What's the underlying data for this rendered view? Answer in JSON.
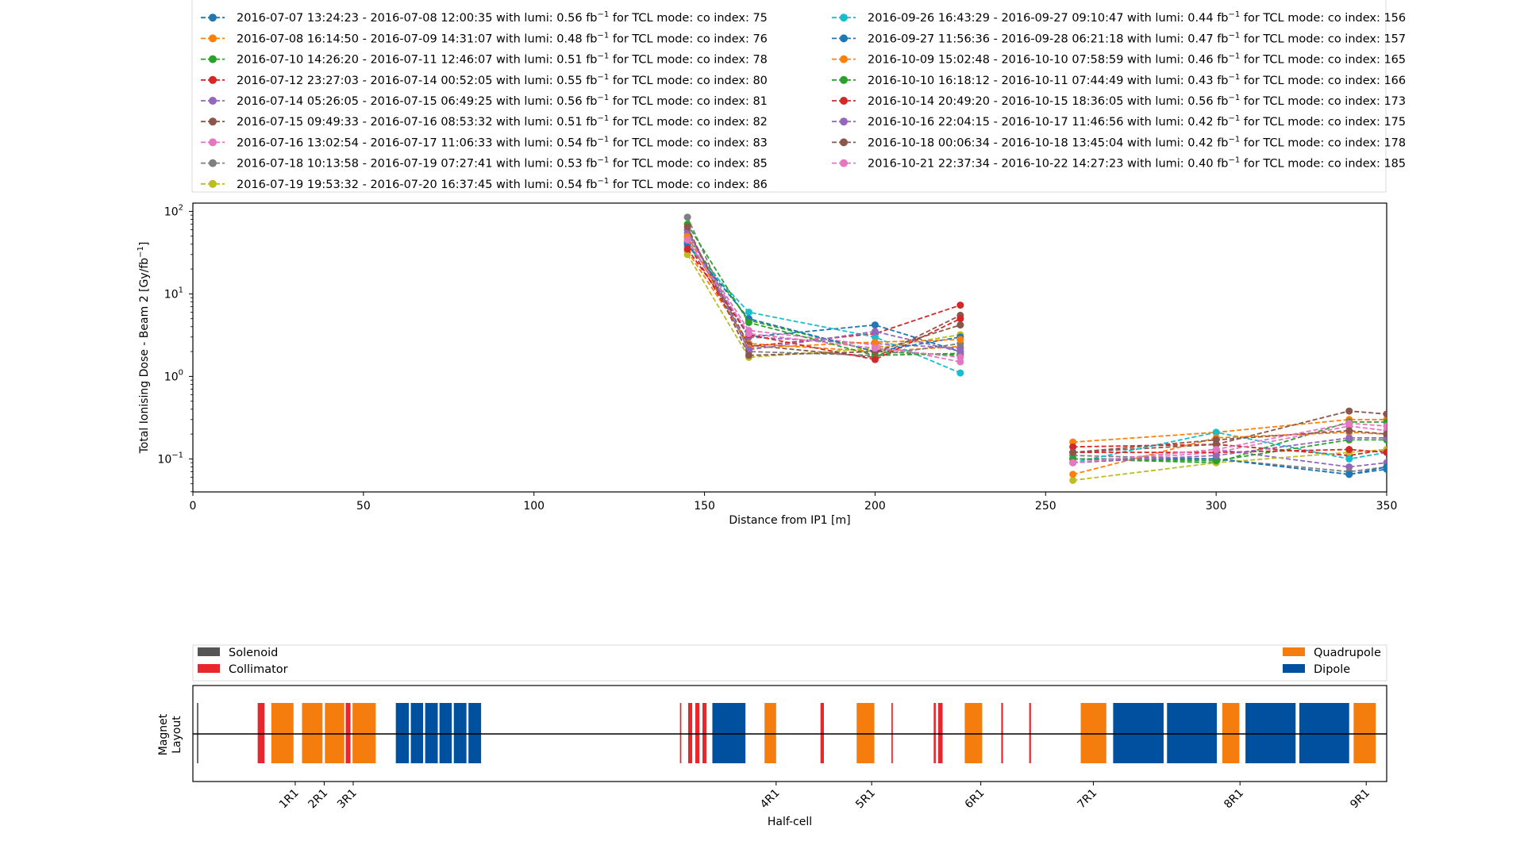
{
  "legend_entries": [
    {
      "text": "2016-07-07 13:24:23 - 2016-07-08 12:00:35 with lumi: 0.56 fb",
      "suffix": " for TCL mode: co index: 75",
      "color": "#1f77b4"
    },
    {
      "text": "2016-07-08 16:14:50 - 2016-07-09 14:31:07 with lumi: 0.48 fb",
      "suffix": " for TCL mode: co index: 76",
      "color": "#ff7f0e"
    },
    {
      "text": "2016-07-10 14:26:20 - 2016-07-11 12:46:07 with lumi: 0.51 fb",
      "suffix": " for TCL mode: co index: 78",
      "color": "#2ca02c"
    },
    {
      "text": "2016-07-12 23:27:03 - 2016-07-14 00:52:05 with lumi: 0.55 fb",
      "suffix": " for TCL mode: co index: 80",
      "color": "#d62728"
    },
    {
      "text": "2016-07-14 05:26:05 - 2016-07-15 06:49:25 with lumi: 0.56 fb",
      "suffix": " for TCL mode: co index: 81",
      "color": "#9467bd"
    },
    {
      "text": "2016-07-15 09:49:33 - 2016-07-16 08:53:32 with lumi: 0.51 fb",
      "suffix": " for TCL mode: co index: 82",
      "color": "#8c564b"
    },
    {
      "text": "2016-07-16 13:02:54 - 2016-07-17 11:06:33 with lumi: 0.54 fb",
      "suffix": " for TCL mode: co index: 83",
      "color": "#e377c2"
    },
    {
      "text": "2016-07-18 10:13:58 - 2016-07-19 07:27:41 with lumi: 0.53 fb",
      "suffix": " for TCL mode: co index: 85",
      "color": "#7f7f7f"
    },
    {
      "text": "2016-07-19 19:53:32 - 2016-07-20 16:37:45 with lumi: 0.54 fb",
      "suffix": " for TCL mode: co index: 86",
      "color": "#bcbd22"
    },
    {
      "text": "2016-09-26 16:43:29 - 2016-09-27 09:10:47 with lumi: 0.44 fb",
      "suffix": " for TCL mode: co index: 156",
      "color": "#17becf"
    },
    {
      "text": "2016-09-27 11:56:36 - 2016-09-28 06:21:18 with lumi: 0.47 fb",
      "suffix": " for TCL mode: co index: 157",
      "color": "#1f77b4"
    },
    {
      "text": "2016-10-09 15:02:48 - 2016-10-10 07:58:59 with lumi: 0.46 fb",
      "suffix": " for TCL mode: co index: 165",
      "color": "#ff7f0e"
    },
    {
      "text": "2016-10-10 16:18:12 - 2016-10-11 07:44:49 with lumi: 0.43 fb",
      "suffix": " for TCL mode: co index: 166",
      "color": "#2ca02c"
    },
    {
      "text": "2016-10-14 20:49:20 - 2016-10-15 18:36:05 with lumi: 0.56 fb",
      "suffix": " for TCL mode: co index: 173",
      "color": "#d62728"
    },
    {
      "text": "2016-10-16 22:04:15 - 2016-10-17 11:46:56 with lumi: 0.42 fb",
      "suffix": " for TCL mode: co index: 175",
      "color": "#9467bd"
    },
    {
      "text": "2016-10-18 00:06:34 - 2016-10-18 13:45:04 with lumi: 0.42 fb",
      "suffix": " for TCL mode: co index: 178",
      "color": "#8c564b"
    },
    {
      "text": "2016-10-21 22:37:34 - 2016-10-22 14:27:23 with lumi: 0.40 fb",
      "suffix": " for TCL mode: co index: 185",
      "color": "#e377c2"
    }
  ],
  "superscript": "−1",
  "chart_data": [
    {
      "type": "line",
      "xlabel": "Distance from IP1 [m]",
      "ylabel": "Total Ionising Dose - Beam 2 [Gy/fb",
      "ylabel_sup": "−1",
      "ylabel_close": "]",
      "xlim": [
        0,
        350
      ],
      "ylim_log10": [
        -1.4,
        2.1
      ],
      "yscale": "log",
      "xticks": [
        "0",
        "50",
        "100",
        "150",
        "200",
        "250",
        "300",
        "350"
      ],
      "ytick_mantissa": "10",
      "ytick_exponents": [
        "2",
        "1",
        "0",
        "−1"
      ],
      "grid": false,
      "group1_x": [
        145,
        163,
        200,
        225
      ],
      "group2_x": [
        258,
        300,
        339,
        350
      ],
      "series": [
        {
          "color": "#1f77b4",
          "g1": [
            45,
            3.0,
            4.2,
            2.0
          ],
          "g2": [
            0.1,
            0.1,
            0.065,
            0.075
          ]
        },
        {
          "color": "#ff7f0e",
          "g1": [
            33,
            2.5,
            2.0,
            2.3
          ],
          "g2": [
            0.16,
            0.21,
            0.3,
            0.3
          ]
        },
        {
          "color": "#2ca02c",
          "g1": [
            48,
            4.8,
            2.0,
            1.8
          ],
          "g2": [
            0.1,
            0.09,
            0.28,
            0.28
          ]
        },
        {
          "color": "#d62728",
          "g1": [
            42,
            2.3,
            3.3,
            7.3
          ],
          "g2": [
            0.14,
            0.15,
            0.11,
            0.13
          ]
        },
        {
          "color": "#9467bd",
          "g1": [
            55,
            3.0,
            2.5,
            2.2
          ],
          "g2": [
            0.09,
            0.13,
            0.08,
            0.09
          ]
        },
        {
          "color": "#8c564b",
          "g1": [
            60,
            2.4,
            1.7,
            5.5
          ],
          "g2": [
            0.12,
            0.15,
            0.38,
            0.35
          ]
        },
        {
          "color": "#e377c2",
          "g1": [
            50,
            3.6,
            2.4,
            1.5
          ],
          "g2": [
            0.09,
            0.12,
            0.25,
            0.22
          ]
        },
        {
          "color": "#7f7f7f",
          "g1": [
            85,
            2.0,
            1.8,
            2.5
          ],
          "g2": [
            0.11,
            0.1,
            0.07,
            0.08
          ]
        },
        {
          "color": "#bcbd22",
          "g1": [
            30,
            1.7,
            2.2,
            3.2
          ],
          "g2": [
            0.055,
            0.09,
            0.12,
            0.13
          ]
        },
        {
          "color": "#17becf",
          "g1": [
            38,
            6.0,
            3.0,
            1.1
          ],
          "g2": [
            0.09,
            0.21,
            0.1,
            0.12
          ]
        },
        {
          "color": "#1f77b4",
          "g1": [
            40,
            5.0,
            2.0,
            3.0
          ],
          "g2": [
            0.1,
            0.1,
            0.065,
            0.08
          ]
        },
        {
          "color": "#ff7f0e",
          "g1": [
            50,
            2.2,
            2.6,
            2.8
          ],
          "g2": [
            0.065,
            0.18,
            0.21,
            0.2
          ]
        },
        {
          "color": "#2ca02c",
          "g1": [
            70,
            4.5,
            1.8,
            1.9
          ],
          "g2": [
            0.1,
            0.095,
            0.17,
            0.17
          ]
        },
        {
          "color": "#d62728",
          "g1": [
            35,
            3.2,
            1.6,
            5.0
          ],
          "g2": [
            0.12,
            0.12,
            0.13,
            0.12
          ]
        },
        {
          "color": "#9467bd",
          "g1": [
            60,
            2.1,
            3.5,
            2.0
          ],
          "g2": [
            0.09,
            0.11,
            0.18,
            0.18
          ]
        },
        {
          "color": "#8c564b",
          "g1": [
            65,
            1.8,
            2.0,
            4.2
          ],
          "g2": [
            0.12,
            0.17,
            0.22,
            0.2
          ]
        },
        {
          "color": "#e377c2",
          "g1": [
            45,
            3.3,
            2.2,
            1.7
          ],
          "g2": [
            0.09,
            0.13,
            0.27,
            0.25
          ]
        }
      ]
    },
    {
      "type": "bar",
      "ylabel_line1": "Magnet",
      "ylabel_line2": "Layout",
      "xlabel": "Half-cell",
      "xlim": [
        0,
        350
      ],
      "legend": [
        {
          "label": "Solenoid",
          "color": "#555555"
        },
        {
          "label": "Collimator",
          "color": "#e8262b"
        },
        {
          "label": "Quadrupole",
          "color": "#f57d0e"
        },
        {
          "label": "Dipole",
          "color": "#0050a0"
        }
      ],
      "half_cell_ticks": [
        {
          "label": "1R1",
          "x": 30
        },
        {
          "label": "2R1",
          "x": 38.5
        },
        {
          "label": "3R1",
          "x": 47
        },
        {
          "label": "4R1",
          "x": 171
        },
        {
          "label": "5R1",
          "x": 199
        },
        {
          "label": "6R1",
          "x": 231
        },
        {
          "label": "7R1",
          "x": 264
        },
        {
          "label": "8R1",
          "x": 307
        },
        {
          "label": "9R1",
          "x": 344
        }
      ],
      "elements": [
        {
          "kind": "Solenoid",
          "x0": 1.2,
          "x1": 1.6
        },
        {
          "kind": "Collimator",
          "x0": 19,
          "x1": 21
        },
        {
          "kind": "Quadrupole",
          "x0": 23,
          "x1": 29.5
        },
        {
          "kind": "Quadrupole",
          "x0": 32,
          "x1": 38
        },
        {
          "kind": "Quadrupole",
          "x0": 38.7,
          "x1": 44.4
        },
        {
          "kind": "Collimator",
          "x0": 44.8,
          "x1": 46.2
        },
        {
          "kind": "Quadrupole",
          "x0": 46.8,
          "x1": 53.6
        },
        {
          "kind": "Dipole",
          "x0": 59.5,
          "x1": 63.3
        },
        {
          "kind": "Dipole",
          "x0": 63.9,
          "x1": 67.5
        },
        {
          "kind": "Dipole",
          "x0": 68.1,
          "x1": 71.8
        },
        {
          "kind": "Dipole",
          "x0": 72.3,
          "x1": 75.9
        },
        {
          "kind": "Dipole",
          "x0": 76.5,
          "x1": 80.2
        },
        {
          "kind": "Dipole",
          "x0": 80.8,
          "x1": 84.5
        },
        {
          "kind": "Collimator",
          "x0": 142.8,
          "x1": 143.2
        },
        {
          "kind": "Collimator",
          "x0": 145.2,
          "x1": 146.4
        },
        {
          "kind": "Collimator",
          "x0": 147.3,
          "x1": 148.5
        },
        {
          "kind": "Collimator",
          "x0": 149.4,
          "x1": 150.6
        },
        {
          "kind": "Dipole",
          "x0": 152.3,
          "x1": 162.0
        },
        {
          "kind": "Quadrupole",
          "x0": 167.6,
          "x1": 171.0
        },
        {
          "kind": "Collimator",
          "x0": 184.0,
          "x1": 185.0
        },
        {
          "kind": "Quadrupole",
          "x0": 194.6,
          "x1": 199.8
        },
        {
          "kind": "Collimator",
          "x0": 204.8,
          "x1": 205.2
        },
        {
          "kind": "Collimator",
          "x0": 217.2,
          "x1": 217.8
        },
        {
          "kind": "Collimator",
          "x0": 218.5,
          "x1": 219.8
        },
        {
          "kind": "Quadrupole",
          "x0": 226.3,
          "x1": 231.4
        },
        {
          "kind": "Collimator",
          "x0": 237.0,
          "x1": 237.5
        },
        {
          "kind": "Collimator",
          "x0": 245.2,
          "x1": 245.7
        },
        {
          "kind": "Quadrupole",
          "x0": 260.3,
          "x1": 267.8
        },
        {
          "kind": "Dipole",
          "x0": 269.8,
          "x1": 284.6
        },
        {
          "kind": "Dipole",
          "x0": 285.6,
          "x1": 300.2
        },
        {
          "kind": "Quadrupole",
          "x0": 301.8,
          "x1": 306.8
        },
        {
          "kind": "Dipole",
          "x0": 308.6,
          "x1": 323.3
        },
        {
          "kind": "Dipole",
          "x0": 324.4,
          "x1": 339.0
        },
        {
          "kind": "Quadrupole",
          "x0": 340.3,
          "x1": 346.8
        }
      ]
    }
  ]
}
